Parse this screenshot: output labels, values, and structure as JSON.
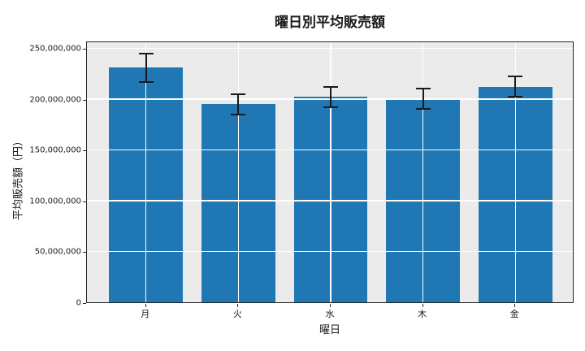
{
  "chart_data": {
    "type": "bar",
    "title": "曜日別平均販売額",
    "xlabel": "曜日",
    "ylabel": "平均販売額（円）",
    "categories": [
      "月",
      "火",
      "水",
      "木",
      "金"
    ],
    "values": [
      231000000,
      195000000,
      202000000,
      200000000,
      212000000
    ],
    "errors": [
      14000000,
      10000000,
      10000000,
      10000000,
      10000000
    ],
    "ylim": [
      0,
      257500000
    ],
    "yticks": [
      0,
      50000000,
      100000000,
      150000000,
      200000000,
      250000000
    ],
    "ytick_labels": [
      "0",
      "50,000,000",
      "100,000,000",
      "150,000,000",
      "200,000,000",
      "250,000,000"
    ],
    "grid": true,
    "grid_position": "above-bars",
    "legend": "none",
    "colors": {
      "bar": "#1f77b4",
      "error": "#1a1a1a",
      "plot_background": "#ebebeb",
      "figure_background": "#ffffff",
      "gridline": "#ffffff",
      "spine": "#262626",
      "text": "#1a1a1a"
    }
  }
}
